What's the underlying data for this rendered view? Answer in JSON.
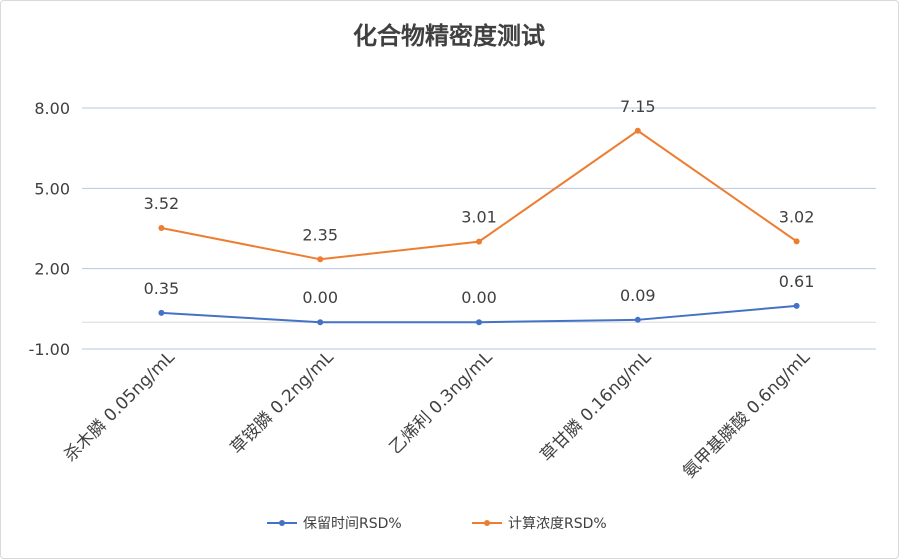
{
  "chart_data": {
    "type": "line",
    "title": "化合物精密度测试",
    "categories": [
      "杀木膦 0.05ng/mL",
      "草铵膦 0.2ng/mL",
      "乙烯利 0.3ng/mL",
      "草甘膦 0.16ng/mL",
      "氨甲基膦酸 0.6ng/mL"
    ],
    "y_ticks": [
      "8.00",
      "5.00",
      "2.00",
      "-1.00"
    ],
    "y_tick_values": [
      8,
      5,
      2,
      -1
    ],
    "ylim": [
      -1,
      8
    ],
    "grid": true,
    "legend_position": "bottom",
    "series": [
      {
        "name": "保留时间RSD%",
        "color": "#4472c4",
        "values": [
          0.35,
          0.0,
          0.0,
          0.09,
          0.61
        ],
        "labels": [
          "0.35",
          "0.00",
          "0.00",
          "0.09",
          "0.61"
        ]
      },
      {
        "name": "计算浓度RSD%",
        "color": "#ed7d31",
        "values": [
          3.52,
          2.35,
          3.01,
          7.15,
          3.02
        ],
        "labels": [
          "3.52",
          "2.35",
          "3.01",
          "7.15",
          "3.02"
        ]
      }
    ]
  }
}
